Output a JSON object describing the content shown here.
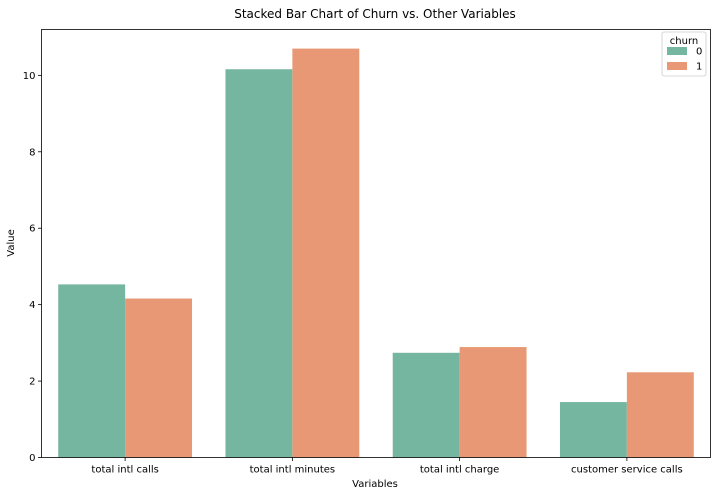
{
  "chart_data": {
    "type": "bar",
    "title": "Stacked Bar Chart of Churn vs. Other Variables",
    "xlabel": "Variables",
    "ylabel": "Value",
    "categories": [
      "total intl calls",
      "total intl minutes",
      "total intl charge",
      "customer service calls"
    ],
    "series": [
      {
        "name": "0",
        "values": [
          4.53,
          10.16,
          2.74,
          1.45
        ],
        "color": "#75b6a0"
      },
      {
        "name": "1",
        "values": [
          4.16,
          10.7,
          2.89,
          2.23
        ],
        "color": "#e89874"
      }
    ],
    "ylim": [
      0,
      11.2
    ],
    "yticks": [
      0,
      2,
      4,
      6,
      8,
      10
    ],
    "grid": false,
    "legend": {
      "title": "churn",
      "position": "top-right"
    }
  }
}
